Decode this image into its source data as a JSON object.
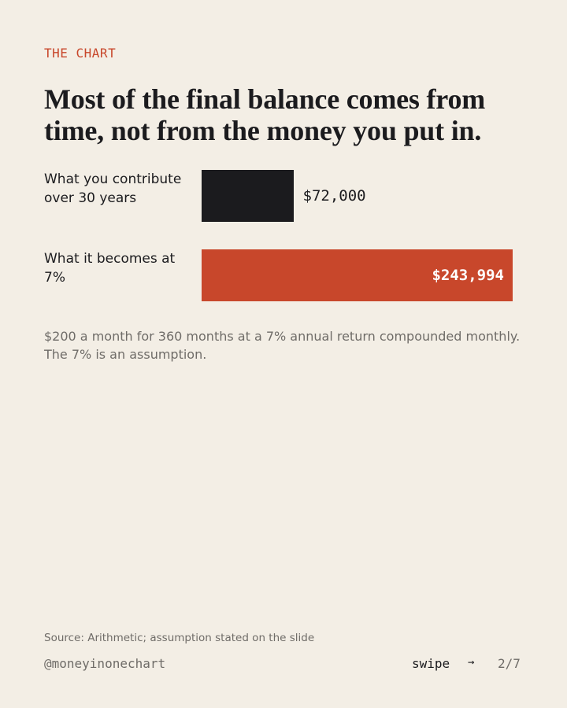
{
  "kicker": "THE CHART",
  "chart_data": {
    "type": "bar",
    "orientation": "horizontal",
    "title": "Most of the final balance comes from time, not from the money you put in.",
    "categories": [
      "What you contribute over 30 years",
      "What it becomes at 7%"
    ],
    "values": [
      72000,
      243994
    ],
    "value_labels": [
      "$72,000",
      "$243,994"
    ],
    "colors": [
      "#1b1b1e",
      "#c8472b"
    ]
  },
  "notes": [
    "$200 a month for 360 months at a 7% annual return compounded monthly.",
    "The 7% is an assumption."
  ],
  "footer": {
    "source": "Source: Arithmetic; assumption stated on the slide",
    "handle": "@moneyinonechart",
    "swipe": "swipe",
    "arrow": "→",
    "page": "2/7"
  }
}
